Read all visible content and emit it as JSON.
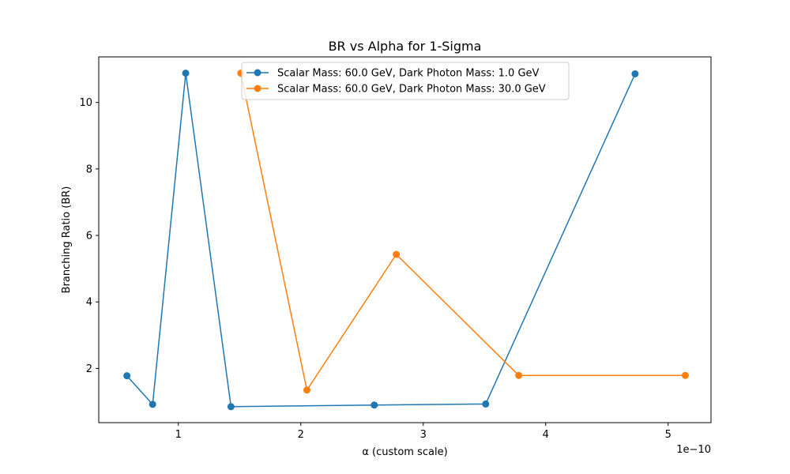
{
  "chart_data": {
    "type": "line",
    "title": "BR vs Alpha for 1-Sigma",
    "xlabel": "α (custom scale)",
    "ylabel": "Branching Ratio (BR)",
    "x_offset_label": "1e−10",
    "xlim": [
      0.35,
      5.35
    ],
    "ylim": [
      0.37,
      11.37
    ],
    "x_ticks": [
      1,
      2,
      3,
      4,
      5
    ],
    "x_tick_labels": [
      "1",
      "2",
      "3",
      "4",
      "5"
    ],
    "y_ticks": [
      2,
      4,
      6,
      8,
      10
    ],
    "y_tick_labels": [
      "2",
      "4",
      "6",
      "8",
      "10"
    ],
    "grid": false,
    "legend_position": "upper-center",
    "series": [
      {
        "name": "Scalar Mass: 60.0 GeV, Dark Photon Mass: 1.0 GeV",
        "color": "#1f77b4",
        "x": [
          0.58,
          0.79,
          1.06,
          1.43,
          2.6,
          3.51,
          4.73
        ],
        "y": [
          1.78,
          0.92,
          10.88,
          0.85,
          0.9,
          0.93,
          10.86
        ]
      },
      {
        "name": "Scalar Mass: 60.0 GeV, Dark Photon Mass: 30.0 GeV",
        "color": "#ff7f0e",
        "x": [
          1.51,
          2.05,
          2.78,
          3.78,
          5.14
        ],
        "y": [
          10.88,
          1.35,
          5.43,
          1.79,
          1.79
        ]
      }
    ]
  }
}
